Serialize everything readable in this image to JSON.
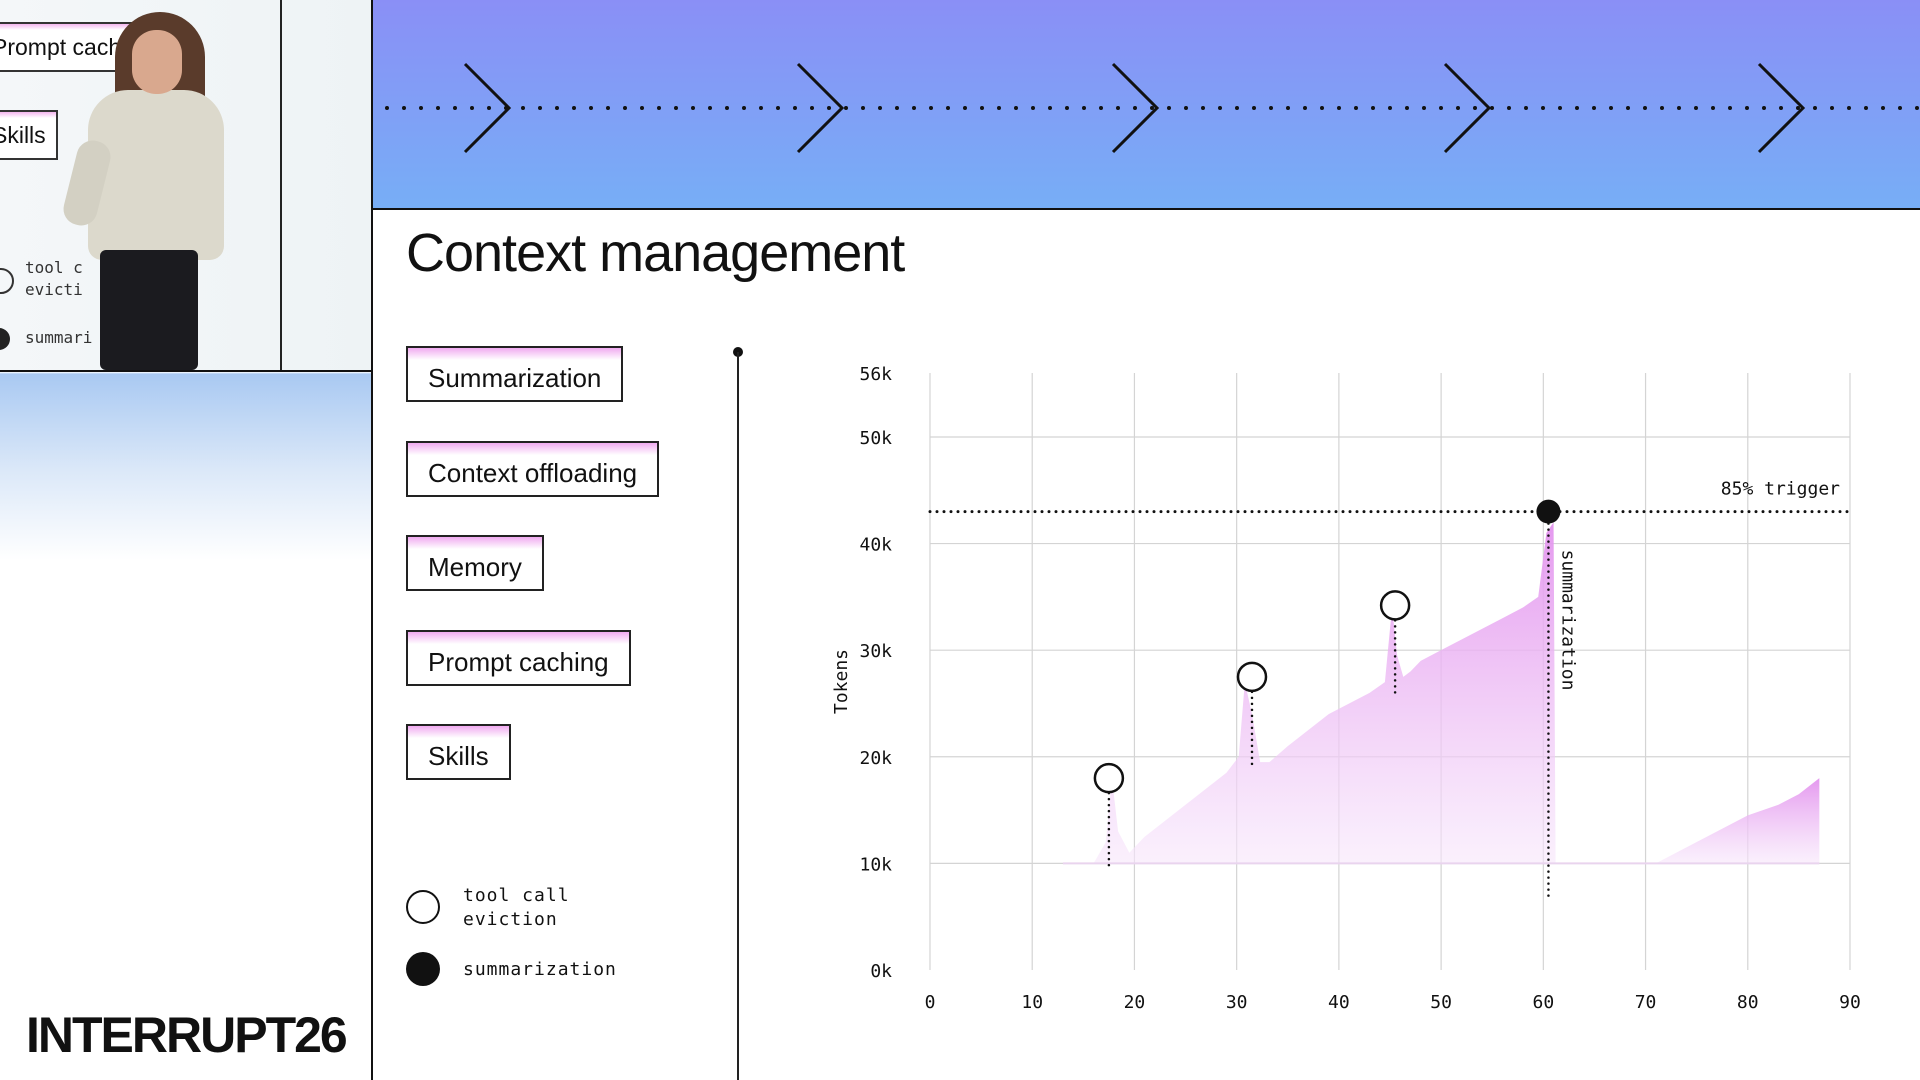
{
  "camera": {
    "slide_chips": [
      "Prompt cach",
      "Skills"
    ],
    "legend_lines": [
      [
        "tool c",
        "evicti"
      ],
      [
        "summari"
      ]
    ]
  },
  "event": {
    "logo": "INTERRUPT26"
  },
  "slide": {
    "title": "Context management",
    "techniques": [
      "Summarization",
      "Context offloading",
      "Memory",
      "Prompt caching",
      "Skills"
    ],
    "legend": [
      {
        "key": "tool_call_eviction",
        "lines": [
          "tool call",
          "eviction"
        ],
        "marker": "hollow-circle"
      },
      {
        "key": "summarization",
        "lines": [
          "summarization"
        ],
        "marker": "filled-circle"
      }
    ]
  },
  "colors": {
    "banner_top": "#8a8ff6",
    "banner_bottom": "#77aef6",
    "area_fill": "#e9a6ef",
    "grid": "#d4d4d4",
    "ink": "#111111"
  },
  "chart_data": {
    "type": "area",
    "xlabel": "",
    "ylabel": "Tokens",
    "xlim": [
      0,
      90
    ],
    "ylim": [
      0,
      56000
    ],
    "x_ticks": [
      0,
      10,
      20,
      30,
      40,
      50,
      60,
      70,
      80,
      90
    ],
    "y_ticks": [
      0,
      10000,
      20000,
      30000,
      40000,
      50000,
      56000
    ],
    "y_tick_labels": [
      "0k",
      "10k",
      "20k",
      "30k",
      "40k",
      "50k",
      "56k"
    ],
    "grid": true,
    "threshold": {
      "y": 43000,
      "label": "85% trigger"
    },
    "series": [
      {
        "x": [
          13,
          16,
          17.2,
          17.8,
          18.4,
          19.5,
          21,
          23,
          25,
          27,
          29,
          30.2,
          30.8,
          31.5,
          32.3,
          33.2,
          35,
          37,
          39,
          41,
          43,
          44.5,
          45.2,
          45.7,
          46.3,
          47,
          48,
          50,
          52,
          54,
          56,
          58,
          59.5,
          60.3,
          61,
          61.2,
          62,
          71,
          74,
          77,
          80,
          83,
          85,
          87
        ],
        "y": [
          10000,
          10000,
          12000,
          18000,
          13000,
          11000,
          12500,
          14000,
          15500,
          17000,
          18500,
          20000,
          27000,
          24000,
          19500,
          19500,
          21000,
          22500,
          24000,
          25000,
          26000,
          27000,
          34000,
          29500,
          27500,
          28000,
          29000,
          30000,
          31000,
          32000,
          33000,
          34000,
          35000,
          41000,
          42000,
          10000,
          10000,
          10000,
          11500,
          13000,
          14500,
          15500,
          16500,
          18000
        ]
      }
    ],
    "events": [
      {
        "type": "tool_call_eviction",
        "x": 17.5,
        "y": 18000
      },
      {
        "type": "tool_call_eviction",
        "x": 31.5,
        "y": 27500
      },
      {
        "type": "tool_call_eviction",
        "x": 45.5,
        "y": 34200
      },
      {
        "type": "summarization",
        "x": 60.5,
        "y": 43000,
        "label": "summarization"
      }
    ]
  }
}
